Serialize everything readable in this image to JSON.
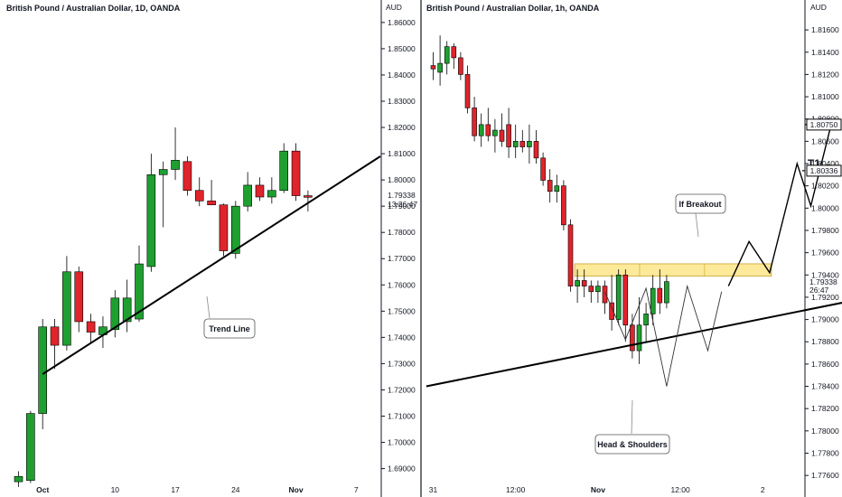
{
  "colors": {
    "up": "#1e9f30",
    "down": "#e0242b",
    "zone_fill": "#fde99a",
    "zone_stroke": "#c9a227",
    "axis": "#131722",
    "line": "#000000"
  },
  "chart_data": [
    {
      "type": "candlestick",
      "title": "British Pound / Australian Dollar, 1D, OANDA",
      "axis_unit": "AUD",
      "yticks": [
        "1.86000",
        "1.85000",
        "1.84000",
        "1.83000",
        "1.82000",
        "1.81000",
        "1.80000",
        "1.79000",
        "1.78000",
        "1.77000",
        "1.76000",
        "1.75000",
        "1.74000",
        "1.73000",
        "1.72000",
        "1.71000",
        "1.70000",
        "1.69000"
      ],
      "ylim": [
        1.684,
        1.8665
      ],
      "xticks": [
        {
          "label": "Oct",
          "i": 2,
          "bold": true
        },
        {
          "label": "10",
          "i": 8,
          "bold": false
        },
        {
          "label": "17",
          "i": 13,
          "bold": false
        },
        {
          "label": "24",
          "i": 18,
          "bold": false
        },
        {
          "label": "Nov",
          "i": 23,
          "bold": true
        },
        {
          "label": "7",
          "i": 28,
          "bold": false
        }
      ],
      "last_price": "1.79338",
      "countdown": "13:26:47",
      "candles": [
        {
          "i": 0,
          "o": 1.685,
          "h": 1.689,
          "l": 1.683,
          "c": 1.687
        },
        {
          "i": 1,
          "o": 1.6855,
          "h": 1.712,
          "l": 1.6845,
          "c": 1.711
        },
        {
          "i": 2,
          "o": 1.711,
          "h": 1.747,
          "l": 1.705,
          "c": 1.744
        },
        {
          "i": 3,
          "o": 1.744,
          "h": 1.747,
          "l": 1.728,
          "c": 1.737
        },
        {
          "i": 4,
          "o": 1.737,
          "h": 1.771,
          "l": 1.735,
          "c": 1.765
        },
        {
          "i": 5,
          "o": 1.765,
          "h": 1.767,
          "l": 1.742,
          "c": 1.746
        },
        {
          "i": 6,
          "o": 1.746,
          "h": 1.749,
          "l": 1.738,
          "c": 1.742
        },
        {
          "i": 7,
          "o": 1.741,
          "h": 1.748,
          "l": 1.736,
          "c": 1.744
        },
        {
          "i": 8,
          "o": 1.743,
          "h": 1.758,
          "l": 1.74,
          "c": 1.755
        },
        {
          "i": 9,
          "o": 1.746,
          "h": 1.762,
          "l": 1.742,
          "c": 1.755
        },
        {
          "i": 10,
          "o": 1.747,
          "h": 1.775,
          "l": 1.746,
          "c": 1.768
        },
        {
          "i": 11,
          "o": 1.767,
          "h": 1.81,
          "l": 1.765,
          "c": 1.802
        },
        {
          "i": 12,
          "o": 1.802,
          "h": 1.807,
          "l": 1.782,
          "c": 1.804
        },
        {
          "i": 13,
          "o": 1.804,
          "h": 1.82,
          "l": 1.8,
          "c": 1.8075
        },
        {
          "i": 14,
          "o": 1.807,
          "h": 1.809,
          "l": 1.794,
          "c": 1.796
        },
        {
          "i": 15,
          "o": 1.796,
          "h": 1.801,
          "l": 1.79,
          "c": 1.792
        },
        {
          "i": 16,
          "o": 1.792,
          "h": 1.8,
          "l": 1.791,
          "c": 1.7905
        },
        {
          "i": 17,
          "o": 1.7905,
          "h": 1.791,
          "l": 1.771,
          "c": 1.773
        },
        {
          "i": 18,
          "o": 1.772,
          "h": 1.792,
          "l": 1.77,
          "c": 1.79
        },
        {
          "i": 19,
          "o": 1.79,
          "h": 1.803,
          "l": 1.788,
          "c": 1.798
        },
        {
          "i": 20,
          "o": 1.798,
          "h": 1.801,
          "l": 1.792,
          "c": 1.7935
        },
        {
          "i": 21,
          "o": 1.7935,
          "h": 1.801,
          "l": 1.791,
          "c": 1.796
        },
        {
          "i": 22,
          "o": 1.796,
          "h": 1.814,
          "l": 1.795,
          "c": 1.811
        },
        {
          "i": 23,
          "o": 1.811,
          "h": 1.814,
          "l": 1.792,
          "c": 1.794
        },
        {
          "i": 24,
          "o": 1.794,
          "h": 1.796,
          "l": 1.788,
          "c": 1.7934
        }
      ],
      "trendline": [
        {
          "i": 2,
          "price": 1.726
        },
        {
          "i": 30,
          "price": 1.809
        }
      ],
      "annotation": "Trend Line"
    },
    {
      "type": "candlestick",
      "title": "British Pound / Australian Dollar, 1h, OANDA",
      "axis_unit": "AUD",
      "yticks": [
        "1.81600",
        "1.81400",
        "1.81200",
        "1.81000",
        "1.80800",
        "1.80600",
        "1.80400",
        "1.80200",
        "1.80000",
        "1.79800",
        "1.79600",
        "1.79400",
        "1.79200",
        "1.79000",
        "1.78800",
        "1.78600",
        "1.78400",
        "1.78200",
        "1.78000",
        "1.77800",
        "1.77600"
      ],
      "ylim": [
        1.7752,
        1.8182
      ],
      "xticks": [
        {
          "label": "31",
          "i": 0,
          "bold": false
        },
        {
          "label": "12:00",
          "i": 12,
          "bold": false
        },
        {
          "label": "Nov",
          "i": 24,
          "bold": true
        },
        {
          "label": "12:00",
          "i": 36,
          "bold": false
        },
        {
          "label": "2",
          "i": 48,
          "bold": false
        }
      ],
      "last_price": "1.79338",
      "countdown": "26:47",
      "candles": [
        {
          "i": 0,
          "o": 1.8128,
          "h": 1.814,
          "l": 1.8115,
          "c": 1.8125
        },
        {
          "i": 1,
          "o": 1.8122,
          "h": 1.8155,
          "l": 1.811,
          "c": 1.813
        },
        {
          "i": 2,
          "o": 1.813,
          "h": 1.815,
          "l": 1.812,
          "c": 1.8145
        },
        {
          "i": 3,
          "o": 1.8145,
          "h": 1.8148,
          "l": 1.8125,
          "c": 1.8135
        },
        {
          "i": 4,
          "o": 1.8135,
          "h": 1.814,
          "l": 1.8115,
          "c": 1.812
        },
        {
          "i": 5,
          "o": 1.812,
          "h": 1.8128,
          "l": 1.8085,
          "c": 1.809
        },
        {
          "i": 6,
          "o": 1.809,
          "h": 1.81,
          "l": 1.806,
          "c": 1.8065
        },
        {
          "i": 7,
          "o": 1.8065,
          "h": 1.8085,
          "l": 1.8055,
          "c": 1.8075
        },
        {
          "i": 8,
          "o": 1.8075,
          "h": 1.809,
          "l": 1.806,
          "c": 1.8065
        },
        {
          "i": 9,
          "o": 1.8065,
          "h": 1.808,
          "l": 1.805,
          "c": 1.807
        },
        {
          "i": 10,
          "o": 1.807,
          "h": 1.8085,
          "l": 1.8055,
          "c": 1.806
        },
        {
          "i": 11,
          "o": 1.8075,
          "h": 1.809,
          "l": 1.8045,
          "c": 1.8055
        },
        {
          "i": 12,
          "o": 1.8055,
          "h": 1.8075,
          "l": 1.8045,
          "c": 1.806
        },
        {
          "i": 13,
          "o": 1.806,
          "h": 1.807,
          "l": 1.805,
          "c": 1.8055
        },
        {
          "i": 14,
          "o": 1.8055,
          "h": 1.8075,
          "l": 1.804,
          "c": 1.806
        },
        {
          "i": 15,
          "o": 1.806,
          "h": 1.807,
          "l": 1.804,
          "c": 1.8045
        },
        {
          "i": 16,
          "o": 1.8045,
          "h": 1.805,
          "l": 1.802,
          "c": 1.8025
        },
        {
          "i": 17,
          "o": 1.8025,
          "h": 1.8035,
          "l": 1.8005,
          "c": 1.8015
        },
        {
          "i": 18,
          "o": 1.8015,
          "h": 1.803,
          "l": 1.8005,
          "c": 1.802
        },
        {
          "i": 19,
          "o": 1.802,
          "h": 1.8025,
          "l": 1.798,
          "c": 1.7985
        },
        {
          "i": 20,
          "o": 1.7985,
          "h": 1.799,
          "l": 1.7925,
          "c": 1.793
        },
        {
          "i": 21,
          "o": 1.793,
          "h": 1.7945,
          "l": 1.7915,
          "c": 1.7935
        },
        {
          "i": 22,
          "o": 1.7935,
          "h": 1.7945,
          "l": 1.792,
          "c": 1.793
        },
        {
          "i": 23,
          "o": 1.793,
          "h": 1.7935,
          "l": 1.7915,
          "c": 1.7925
        },
        {
          "i": 24,
          "o": 1.7925,
          "h": 1.7935,
          "l": 1.7915,
          "c": 1.793
        },
        {
          "i": 25,
          "o": 1.793,
          "h": 1.7935,
          "l": 1.7905,
          "c": 1.7915
        },
        {
          "i": 26,
          "o": 1.7915,
          "h": 1.794,
          "l": 1.789,
          "c": 1.79
        },
        {
          "i": 27,
          "o": 1.79,
          "h": 1.7945,
          "l": 1.7895,
          "c": 1.794
        },
        {
          "i": 28,
          "o": 1.794,
          "h": 1.7945,
          "l": 1.788,
          "c": 1.7895
        },
        {
          "i": 29,
          "o": 1.7895,
          "h": 1.7905,
          "l": 1.7865,
          "c": 1.7872
        },
        {
          "i": 30,
          "o": 1.7872,
          "h": 1.792,
          "l": 1.786,
          "c": 1.7895
        },
        {
          "i": 31,
          "o": 1.7895,
          "h": 1.7915,
          "l": 1.788,
          "c": 1.7905
        },
        {
          "i": 32,
          "o": 1.7905,
          "h": 1.794,
          "l": 1.7895,
          "c": 1.7928
        },
        {
          "i": 33,
          "o": 1.7928,
          "h": 1.7945,
          "l": 1.7905,
          "c": 1.7915
        },
        {
          "i": 34,
          "o": 1.7915,
          "h": 1.794,
          "l": 1.791,
          "c": 1.7934
        }
      ],
      "neckline": [
        {
          "i": -1,
          "price": 1.784
        },
        {
          "i": 70,
          "price": 1.7928
        }
      ],
      "resistance_zone": {
        "i_start": 21,
        "i_end": 49,
        "top": 1.795,
        "bottom": 1.7939
      },
      "head_shoulders_path": [
        {
          "i": 25,
          "price": 1.7925
        },
        {
          "i": 28,
          "price": 1.7882
        },
        {
          "i": 31,
          "price": 1.7928
        },
        {
          "i": 34,
          "price": 1.784
        },
        {
          "i": 37,
          "price": 1.793
        },
        {
          "i": 40,
          "price": 1.7872
        },
        {
          "i": 42,
          "price": 1.7925
        }
      ],
      "projection_path": [
        {
          "i": 43,
          "price": 1.793
        },
        {
          "i": 46,
          "price": 1.797
        },
        {
          "i": 49,
          "price": 1.7942
        },
        {
          "i": 53,
          "price": 1.804
        },
        {
          "i": 55,
          "price": 1.8002
        },
        {
          "i": 58,
          "price": 1.8076
        }
      ],
      "targets": [
        {
          "name": "T1",
          "value": "1.80336",
          "price": 1.80336,
          "label_i": 54
        },
        {
          "name": "T2",
          "value": "1.80750",
          "price": 1.8075,
          "label_i": 59
        }
      ],
      "annotations": [
        "If Breakout",
        "Head & Shoulders"
      ]
    }
  ]
}
